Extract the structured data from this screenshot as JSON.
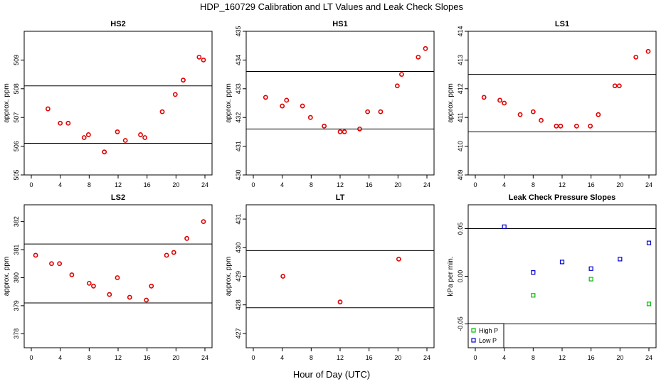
{
  "figure": {
    "title": "HDP_160729  Calibration and LT Values and Leak Check Slopes",
    "xlabel": "Hour of Day (UTC)"
  },
  "chart_data": [
    {
      "type": "scatter",
      "title": "HS2",
      "xlabel": "",
      "ylabel": "approx. ppm",
      "xlim": [
        0,
        24
      ],
      "ylim": [
        505,
        510
      ],
      "xticks": [
        0,
        4,
        8,
        12,
        16,
        20,
        24
      ],
      "yticks": [
        505,
        506,
        507,
        508,
        509
      ],
      "hlines": [
        506.1,
        508.1
      ],
      "grid": false,
      "series": [
        {
          "color": "#e00000",
          "marker": "circle",
          "points": [
            [
              2.3,
              507.3
            ],
            [
              4.0,
              506.8
            ],
            [
              5.1,
              506.8
            ],
            [
              7.3,
              506.3
            ],
            [
              7.9,
              506.4
            ],
            [
              10.1,
              505.8
            ],
            [
              11.9,
              506.5
            ],
            [
              13.0,
              506.2
            ],
            [
              15.1,
              506.4
            ],
            [
              15.7,
              506.3
            ],
            [
              18.1,
              507.2
            ],
            [
              19.9,
              507.8
            ],
            [
              21.0,
              508.3
            ],
            [
              23.2,
              509.1
            ],
            [
              23.8,
              509.0
            ]
          ]
        }
      ]
    },
    {
      "type": "scatter",
      "title": "HS1",
      "xlabel": "",
      "ylabel": "approx. ppm",
      "xlim": [
        0,
        24
      ],
      "ylim": [
        430,
        435
      ],
      "xticks": [
        0,
        4,
        8,
        12,
        16,
        20,
        24
      ],
      "yticks": [
        430,
        431,
        432,
        433,
        434,
        435
      ],
      "hlines": [
        431.6,
        433.6
      ],
      "grid": false,
      "series": [
        {
          "color": "#e00000",
          "marker": "circle",
          "points": [
            [
              1.7,
              432.7
            ],
            [
              4.0,
              432.4
            ],
            [
              4.6,
              432.6
            ],
            [
              6.8,
              432.4
            ],
            [
              7.9,
              432.0
            ],
            [
              9.8,
              431.7
            ],
            [
              12.0,
              431.5
            ],
            [
              12.6,
              431.5
            ],
            [
              14.7,
              431.6
            ],
            [
              15.8,
              432.2
            ],
            [
              17.6,
              432.2
            ],
            [
              19.9,
              433.1
            ],
            [
              20.5,
              433.5
            ],
            [
              22.8,
              434.1
            ],
            [
              23.8,
              434.4
            ]
          ]
        }
      ]
    },
    {
      "type": "scatter",
      "title": "LS1",
      "xlabel": "",
      "ylabel": "approx. ppm",
      "xlim": [
        0,
        24
      ],
      "ylim": [
        409,
        414
      ],
      "xticks": [
        0,
        4,
        8,
        12,
        16,
        20,
        24
      ],
      "yticks": [
        409,
        410,
        411,
        412,
        413,
        414
      ],
      "hlines": [
        410.5,
        412.5
      ],
      "grid": false,
      "series": [
        {
          "color": "#e00000",
          "marker": "circle",
          "points": [
            [
              1.2,
              411.7
            ],
            [
              3.4,
              411.6
            ],
            [
              4.0,
              411.5
            ],
            [
              6.2,
              411.1
            ],
            [
              8.0,
              411.2
            ],
            [
              9.1,
              410.9
            ],
            [
              11.2,
              410.7
            ],
            [
              11.8,
              410.7
            ],
            [
              14.0,
              410.7
            ],
            [
              15.9,
              410.7
            ],
            [
              17.0,
              411.1
            ],
            [
              19.3,
              412.1
            ],
            [
              19.9,
              412.1
            ],
            [
              22.2,
              413.1
            ],
            [
              23.9,
              413.3
            ]
          ]
        }
      ]
    },
    {
      "type": "scatter",
      "title": "LS2",
      "xlabel": "",
      "ylabel": "approx. ppm",
      "xlim": [
        0,
        24
      ],
      "ylim": [
        377.5,
        382.6
      ],
      "xticks": [
        0,
        4,
        8,
        12,
        16,
        20,
        24
      ],
      "yticks": [
        378,
        379,
        380,
        381,
        382
      ],
      "hlines": [
        379.1,
        381.2
      ],
      "grid": false,
      "series": [
        {
          "color": "#e00000",
          "marker": "circle",
          "points": [
            [
              0.6,
              380.8
            ],
            [
              2.8,
              380.5
            ],
            [
              3.9,
              380.5
            ],
            [
              5.6,
              380.1
            ],
            [
              8.0,
              379.8
            ],
            [
              8.6,
              379.7
            ],
            [
              10.8,
              379.4
            ],
            [
              11.9,
              380.0
            ],
            [
              13.6,
              379.3
            ],
            [
              15.9,
              379.2
            ],
            [
              16.6,
              379.7
            ],
            [
              18.7,
              380.8
            ],
            [
              19.7,
              380.9
            ],
            [
              21.5,
              381.4
            ],
            [
              23.8,
              382.0
            ]
          ]
        }
      ]
    },
    {
      "type": "scatter",
      "title": "LT",
      "xlabel": "",
      "ylabel": "approx. ppm",
      "xlim": [
        0,
        24
      ],
      "ylim": [
        426.5,
        431.5
      ],
      "xticks": [
        0,
        4,
        8,
        12,
        16,
        20,
        24
      ],
      "yticks": [
        427,
        428,
        429,
        430,
        431
      ],
      "hlines": [
        427.9,
        429.9
      ],
      "grid": false,
      "series": [
        {
          "color": "#e00000",
          "marker": "circle",
          "points": [
            [
              4.1,
              429.0
            ],
            [
              12.0,
              428.1
            ],
            [
              20.1,
              429.6
            ]
          ]
        }
      ]
    },
    {
      "type": "scatter",
      "title": "Leak Check Pressure Slopes",
      "xlabel": "",
      "ylabel": "kPa per min.",
      "xlim": [
        0,
        24
      ],
      "ylim": [
        -0.075,
        0.075
      ],
      "xticks": [
        0,
        4,
        8,
        12,
        16,
        20,
        24
      ],
      "yticks": [
        -0.05,
        0.0,
        0.05
      ],
      "ytick_labels": [
        "-0.05",
        "0.00",
        "0.05"
      ],
      "hlines": [
        -0.05,
        0.05
      ],
      "grid": false,
      "legend_position": "bottom-left",
      "series": [
        {
          "name": "High P",
          "color": "#00bb00",
          "marker": "square",
          "points": [
            [
              8.0,
              -0.02
            ],
            [
              16.0,
              -0.003
            ],
            [
              24.0,
              -0.029
            ]
          ]
        },
        {
          "name": "Low P",
          "color": "#0000cc",
          "marker": "square",
          "points": [
            [
              4.0,
              0.052
            ],
            [
              8.0,
              0.004
            ],
            [
              12.0,
              0.015
            ],
            [
              16.0,
              0.008
            ],
            [
              20.0,
              0.018
            ],
            [
              24.0,
              0.035
            ]
          ]
        }
      ]
    }
  ]
}
